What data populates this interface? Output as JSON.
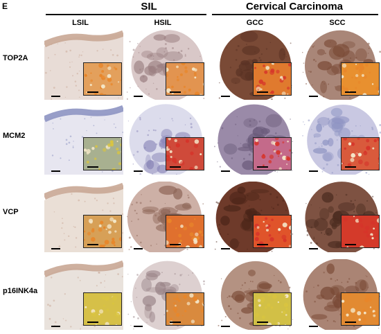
{
  "panel_label": "E",
  "groups": [
    {
      "title": "SIL"
    },
    {
      "title": "Cervical Carcinoma"
    }
  ],
  "columns": [
    "LSIL",
    "HSIL",
    "GCC",
    "SCC"
  ],
  "rows": [
    "TOP2A",
    "MCM2",
    "VCP",
    "p16INK4a"
  ],
  "colors": {
    "stain_brown": "#7a4a36",
    "stain_light": "#c9a795",
    "counterstain_blue": "#8d93c2",
    "signal_orange": "#e8862a",
    "signal_red": "#d6342a",
    "signal_yellow": "#d9c440"
  }
}
